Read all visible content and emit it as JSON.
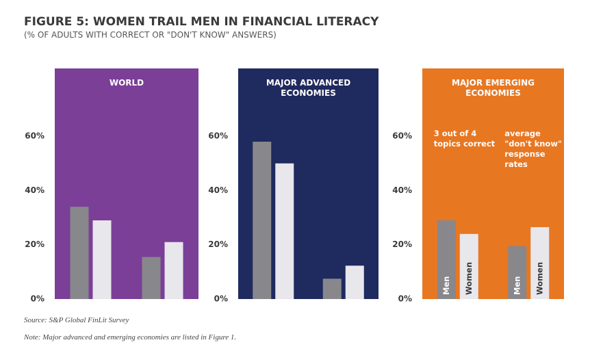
{
  "title": "FIGURE 5: WOMEN TRAIL MEN IN FINANCIAL LITERACY",
  "subtitle": "(% OF ADULTS WITH CORRECT OR \"DON'T KNOW\" ANSWERS)",
  "source": "Source: S&P Global FinLit Survey",
  "note": "Note: Major advanced and emerging economies are listed in Figure 1.",
  "chart_data": [
    {
      "type": "bar",
      "title": "WORLD",
      "background": "#7b3f98",
      "categories": [
        null,
        null
      ],
      "series": [
        {
          "color": "#88878c",
          "values": [
            34,
            15.5
          ]
        },
        {
          "color": "#e8e7ec",
          "values": [
            29,
            21
          ]
        }
      ],
      "ylim": [
        0,
        85
      ],
      "yticks": [
        {
          "value": 0,
          "label": "0%"
        },
        {
          "value": 20,
          "label": "20%"
        },
        {
          "value": 40,
          "label": "40%"
        },
        {
          "value": 60,
          "label": "60%"
        }
      ]
    },
    {
      "type": "bar",
      "title": "MAJOR ADVANCED ECONOMIES",
      "background": "#1f2a5e",
      "categories": [
        null,
        null
      ],
      "series": [
        {
          "color": "#88878c",
          "values": [
            58,
            7.5
          ]
        },
        {
          "color": "#e8e7ec",
          "values": [
            50,
            12.3
          ]
        }
      ],
      "ylim": [
        0,
        85
      ],
      "yticks": [
        {
          "value": 0,
          "label": "0%"
        },
        {
          "value": 20,
          "label": "20%"
        },
        {
          "value": 40,
          "label": "40%"
        },
        {
          "value": 60,
          "label": "60%"
        }
      ]
    },
    {
      "type": "bar",
      "title": "MAJOR EMERGING ECONOMIES",
      "background": "#e87722",
      "categories": [
        "3 out of 4 topics correct",
        "average \"don't know\" response rates"
      ],
      "series": [
        {
          "name": "Men",
          "color": "#88878c",
          "values": [
            29,
            19.5
          ]
        },
        {
          "name": "Women",
          "color": "#e8e7ec",
          "values": [
            24,
            26.5
          ]
        }
      ],
      "ylim": [
        0,
        85
      ],
      "yticks": [
        {
          "value": 0,
          "label": "0%"
        },
        {
          "value": 20,
          "label": "20%"
        },
        {
          "value": 40,
          "label": "40%"
        },
        {
          "value": 60,
          "label": "60%"
        }
      ]
    }
  ]
}
